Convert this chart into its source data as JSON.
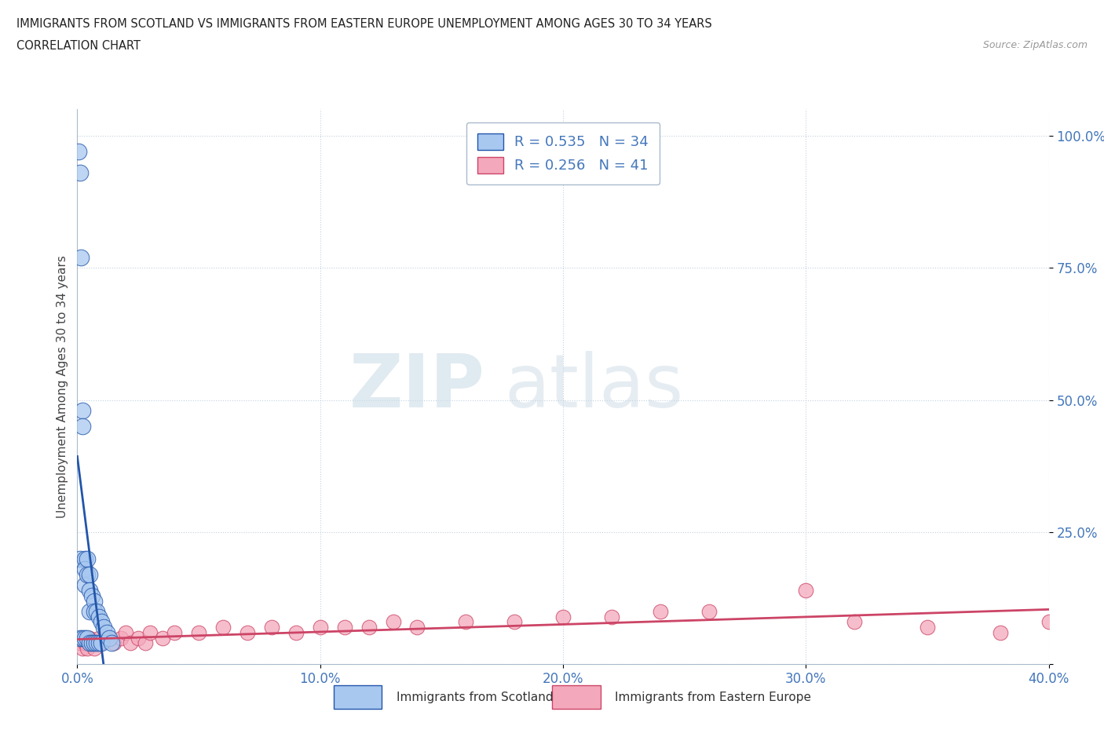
{
  "title_line1": "IMMIGRANTS FROM SCOTLAND VS IMMIGRANTS FROM EASTERN EUROPE UNEMPLOYMENT AMONG AGES 30 TO 34 YEARS",
  "title_line2": "CORRELATION CHART",
  "source": "Source: ZipAtlas.com",
  "ylabel": "Unemployment Among Ages 30 to 34 years",
  "xlim": [
    0.0,
    0.4
  ],
  "ylim": [
    0.0,
    1.05
  ],
  "x_ticks": [
    0.0,
    0.1,
    0.2,
    0.3,
    0.4
  ],
  "x_tick_labels": [
    "0.0%",
    "10.0%",
    "20.0%",
    "30.0%",
    "40.0%"
  ],
  "y_ticks": [
    0.0,
    0.25,
    0.5,
    0.75,
    1.0
  ],
  "y_tick_labels": [
    "",
    "25.0%",
    "50.0%",
    "75.0%",
    "100.0%"
  ],
  "scotland_R": 0.535,
  "scotland_N": 34,
  "eastern_R": 0.256,
  "eastern_N": 41,
  "scotland_color": "#a8c8f0",
  "eastern_color": "#f4a8bc",
  "scotland_line_color": "#2255aa",
  "eastern_line_color": "#cc4466",
  "watermark_zip": "ZIP",
  "watermark_atlas": "atlas",
  "scotland_x": [
    0.0005,
    0.001,
    0.001,
    0.001,
    0.0015,
    0.002,
    0.002,
    0.002,
    0.003,
    0.003,
    0.003,
    0.003,
    0.004,
    0.004,
    0.004,
    0.005,
    0.005,
    0.005,
    0.005,
    0.006,
    0.006,
    0.007,
    0.007,
    0.007,
    0.008,
    0.008,
    0.009,
    0.009,
    0.01,
    0.01,
    0.011,
    0.012,
    0.013,
    0.014
  ],
  "scotland_y": [
    0.97,
    0.93,
    0.2,
    0.05,
    0.77,
    0.48,
    0.45,
    0.05,
    0.2,
    0.18,
    0.15,
    0.05,
    0.2,
    0.17,
    0.05,
    0.17,
    0.14,
    0.1,
    0.04,
    0.13,
    0.04,
    0.12,
    0.1,
    0.04,
    0.1,
    0.04,
    0.09,
    0.04,
    0.08,
    0.04,
    0.07,
    0.06,
    0.05,
    0.04
  ],
  "eastern_x": [
    0.001,
    0.002,
    0.003,
    0.004,
    0.005,
    0.006,
    0.007,
    0.008,
    0.009,
    0.01,
    0.012,
    0.015,
    0.018,
    0.02,
    0.022,
    0.025,
    0.028,
    0.03,
    0.035,
    0.04,
    0.05,
    0.06,
    0.07,
    0.08,
    0.09,
    0.1,
    0.11,
    0.12,
    0.13,
    0.14,
    0.16,
    0.18,
    0.2,
    0.22,
    0.24,
    0.26,
    0.3,
    0.32,
    0.35,
    0.38,
    0.4
  ],
  "eastern_y": [
    0.04,
    0.03,
    0.04,
    0.03,
    0.05,
    0.04,
    0.03,
    0.04,
    0.05,
    0.04,
    0.05,
    0.04,
    0.05,
    0.06,
    0.04,
    0.05,
    0.04,
    0.06,
    0.05,
    0.06,
    0.06,
    0.07,
    0.06,
    0.07,
    0.06,
    0.07,
    0.07,
    0.07,
    0.08,
    0.07,
    0.08,
    0.08,
    0.09,
    0.09,
    0.1,
    0.1,
    0.14,
    0.08,
    0.07,
    0.06,
    0.08
  ],
  "trend_scot_x0": 0.0,
  "trend_scot_x1": 0.014,
  "trend_scot_dash_x0": 0.014,
  "trend_scot_dash_x1": 0.2,
  "trend_east_x0": 0.0,
  "trend_east_x1": 0.4
}
